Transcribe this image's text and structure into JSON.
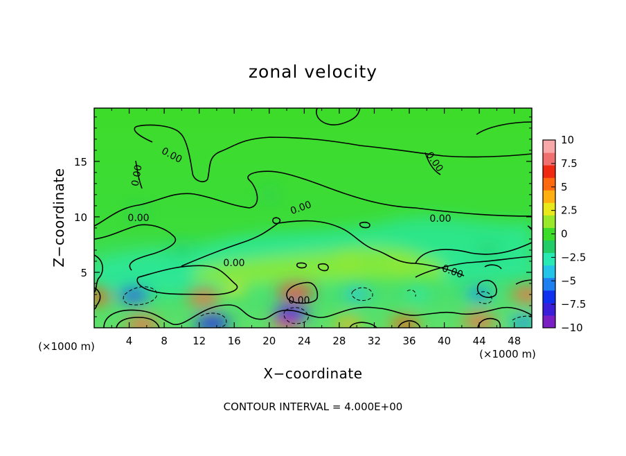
{
  "chart_data": {
    "type": "heatmap",
    "title": "zonal velocity",
    "xlabel": "X−coordinate",
    "ylabel": "Z−coordinate",
    "x_unit": "(×1000 m)",
    "y_unit": "(×1000 m)",
    "xlim": [
      0,
      50
    ],
    "ylim": [
      0,
      19.8
    ],
    "x_ticks": [
      "4",
      "8",
      "12",
      "16",
      "20",
      "24",
      "28",
      "32",
      "36",
      "40",
      "44",
      "48"
    ],
    "y_ticks": [
      "5",
      "10",
      "15"
    ],
    "colorbar": {
      "ticks": [
        "10",
        "7.5",
        "5",
        "2.5",
        "0",
        "−2.5",
        "−5",
        "−7.5",
        "−10"
      ],
      "min": -10,
      "max": 10,
      "colors": [
        "#7a1fc4",
        "#3b1fd8",
        "#1030f0",
        "#1e7ff0",
        "#24c4e8",
        "#28e8b4",
        "#22cc66",
        "#3ddc2a",
        "#9ae82a",
        "#e8e81a",
        "#ffb010",
        "#ff6a10",
        "#f02a10",
        "#f07070",
        "#f8a8a8"
      ]
    },
    "contour_label": "0.00",
    "contour_interval_note": "CONTOUR INTERVAL = 4.000E+00",
    "features": [
      {
        "x": 5.5,
        "z": 0.3,
        "value": 6
      },
      {
        "x": 13.5,
        "z": 0.4,
        "value": -7
      },
      {
        "x": 22.0,
        "z": 0.4,
        "value": 5
      },
      {
        "x": 29.0,
        "z": 0.3,
        "value": 4
      },
      {
        "x": 35.5,
        "z": 0.3,
        "value": 5
      },
      {
        "x": 44.0,
        "z": 0.6,
        "value": 6
      },
      {
        "x": 49.0,
        "z": 0.5,
        "value": -5
      },
      {
        "x": 4.5,
        "z": 2.9,
        "value": -6
      },
      {
        "x": 12.5,
        "z": 2.7,
        "value": 6
      },
      {
        "x": 23.0,
        "z": 3.2,
        "value": 7
      },
      {
        "x": 22.5,
        "z": 1.3,
        "value": -7
      },
      {
        "x": 30.0,
        "z": 3.0,
        "value": -4
      },
      {
        "x": 37.0,
        "z": 3.0,
        "value": -3
      },
      {
        "x": 44.0,
        "z": 3.0,
        "value": -5
      },
      {
        "x": 49.5,
        "z": 3.0,
        "value": 6
      },
      {
        "x": 0.3,
        "z": 2.8,
        "value": 5
      },
      {
        "x": 16.0,
        "z": 3.5,
        "value": 3
      },
      {
        "x": 29.0,
        "z": 6.0,
        "value": 2
      },
      {
        "x": 35.0,
        "z": 5.8,
        "value": 2
      },
      {
        "x": 10.0,
        "z": 7.0,
        "value": -2
      },
      {
        "x": 45.0,
        "z": 7.0,
        "value": -2
      },
      {
        "x": 20.0,
        "z": 12.0,
        "value": -1
      },
      {
        "x": 5.0,
        "z": 10.5,
        "value": -1
      }
    ]
  }
}
